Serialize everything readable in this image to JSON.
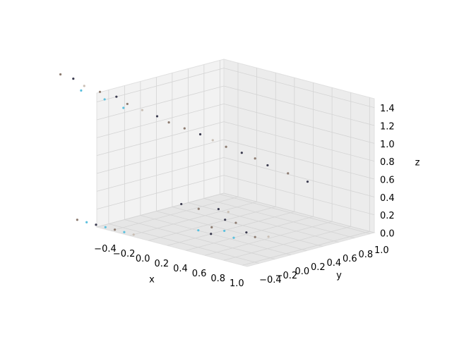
{
  "chart_data": {
    "type": "scatter3d",
    "x_label": "x",
    "y_label": "y",
    "z_label": "z",
    "xlim": [
      -0.55,
      1.05
    ],
    "ylim": [
      -0.55,
      1.05
    ],
    "zlim": [
      0,
      1.5
    ],
    "xticks": [
      {
        "value": -0.4,
        "label": "−0.4"
      },
      {
        "value": -0.2,
        "label": "−0.2"
      },
      {
        "value": 0,
        "label": "0.0"
      },
      0.2,
      0.4,
      0.6,
      0.8,
      {
        "value": 1,
        "label": "1.0"
      }
    ],
    "yticks": [
      {
        "value": -0.4,
        "label": "−0.4"
      },
      {
        "value": -0.2,
        "label": "−0.2"
      },
      {
        "value": 0,
        "label": "0.0"
      },
      0.2,
      0.4,
      0.6,
      0.8,
      {
        "value": 1,
        "label": "1.0"
      }
    ],
    "zticks": [
      {
        "value": 0,
        "label": "0.0"
      },
      0.2,
      0.4,
      0.6,
      0.8,
      {
        "value": 1,
        "label": "1.0"
      },
      1.2,
      1.4
    ],
    "grid": true,
    "x": [
      -1.57,
      -1.45,
      -1.3,
      -1.15,
      -1.0,
      -0.85,
      -0.7,
      -0.55,
      -0.4,
      -0.25,
      -0.1,
      0.05,
      0.2,
      0.35,
      0.5,
      0.65,
      0.85,
      1.05,
      -1.35,
      -1.1,
      -0.9,
      0.2,
      0.3,
      0.25,
      0.35,
      0.3,
      0.4,
      0.45,
      0.5,
      0.15,
      0.28,
      0.38,
      0.6,
      -0.1,
      -0.2,
      -0.8,
      -0.7,
      -0.6,
      -0.5,
      -0.4,
      -0.3,
      -0.2
    ],
    "y": [
      0.2,
      0.22,
      0.18,
      0.2,
      0.23,
      0.19,
      0.2,
      0.21,
      0.18,
      0.2,
      0.22,
      0.2,
      0.19,
      0.21,
      0.2,
      0.18,
      0.2,
      0.21,
      0.2,
      0.2,
      0.2,
      0.0,
      0.05,
      -0.05,
      0.0,
      0.1,
      0.05,
      0.15,
      0.2,
      -0.1,
      0.0,
      0.1,
      0.25,
      0.2,
      0.1,
      -0.5,
      -0.5,
      -0.5,
      -0.5,
      -0.5,
      -0.5,
      -0.5
    ],
    "z": [
      1.25,
      1.23,
      1.2,
      1.17,
      1.15,
      1.12,
      1.09,
      1.06,
      1.04,
      1.01,
      0.98,
      0.96,
      0.93,
      0.9,
      0.88,
      0.85,
      0.81,
      0.77,
      1.13,
      1.1,
      1.06,
      0.0,
      0.05,
      0.1,
      0.2,
      0.25,
      0.0,
      0.05,
      0.0,
      0.05,
      0.3,
      0.15,
      0.02,
      0.15,
      0.2,
      0.0,
      0.0,
      0.0,
      0.0,
      0.0,
      0.0,
      0.0
    ],
    "colors": [
      "#8c7b70",
      "#3b3b4f",
      "#c9bfb5",
      "#8c7b70",
      "#3b3b4f",
      "#8c7b70",
      "#c9bfb5",
      "#3b3b4f",
      "#8c7b70",
      "#8c7b70",
      "#3b3b4f",
      "#c9bfb5",
      "#8c7b70",
      "#3b3b4f",
      "#8c7b70",
      "#3b3b4f",
      "#8c7b70",
      "#3b3b4f",
      "#5bc0de",
      "#5bc0de",
      "#5bc0de",
      "#3b3b4f",
      "#5bc0de",
      "#8c7b70",
      "#3b3b4f",
      "#c9bfb5",
      "#5bc0de",
      "#3b3b4f",
      "#8c7b70",
      "#5bc0de",
      "#3b3b4f",
      "#8c7b70",
      "#c9bfb5",
      "#8c7b70",
      "#3b3b4f",
      "#8c7b70",
      "#5bc0de",
      "#3b3b4f",
      "#5bc0de",
      "#8c7b70",
      "#5bc0de",
      "#c9bfb5"
    ]
  }
}
